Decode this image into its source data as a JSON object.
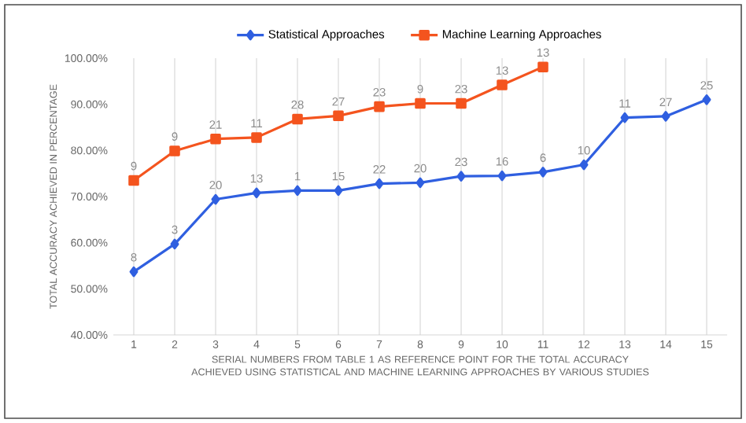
{
  "chart_data": {
    "type": "line",
    "xlabel": "SERIAL NUMBERS FROM TABLE 1 AS REFERENCE POINT FOR THE TOTAL ACCURACY ACHIEVED USING STATISTICAL AND MACHINE LEARNING APPROACHES BY VARIOUS STUDIES",
    "ylabel": "TOTAL ACCURACY ACHIEVED IN PERCENTAGE",
    "x": [
      1,
      2,
      3,
      4,
      5,
      6,
      7,
      8,
      9,
      10,
      11,
      12,
      13,
      14,
      15
    ],
    "xlim": [
      0.5,
      15.5
    ],
    "xticks": [
      1,
      2,
      3,
      4,
      5,
      6,
      7,
      8,
      9,
      10,
      11,
      12,
      13,
      14,
      15
    ],
    "ylim": [
      40,
      100
    ],
    "yticks": [
      {
        "value": 40,
        "label": "40.00%"
      },
      {
        "value": 50,
        "label": "50.00%"
      },
      {
        "value": 60,
        "label": "60.00%"
      },
      {
        "value": 70,
        "label": "70.00%"
      },
      {
        "value": 80,
        "label": "80.00%"
      },
      {
        "value": 90,
        "label": "90.00%"
      },
      {
        "value": 100,
        "label": "100.00%"
      }
    ],
    "grid": "x",
    "legend": "top",
    "series": [
      {
        "name": "Statistical Approaches",
        "color": "#2f5fe0",
        "marker": "diamond",
        "values": [
          53.7,
          59.7,
          69.4,
          70.8,
          71.3,
          71.3,
          72.8,
          73.0,
          74.4,
          74.5,
          75.3,
          76.9,
          87.1,
          87.4,
          91.0
        ]
      },
      {
        "name": "Machine Learning Approaches",
        "color": "#f4541e",
        "marker": "square",
        "values": [
          73.5,
          79.9,
          82.5,
          82.8,
          86.8,
          87.5,
          89.5,
          90.2,
          90.2,
          94.2,
          98.1,
          null,
          null,
          null,
          null
        ]
      }
    ],
    "annotations": [
      {
        "text": "8",
        "x": 1,
        "y": 53.7
      },
      {
        "text": "3",
        "x": 2,
        "y": 59.7
      },
      {
        "text": "20",
        "x": 3,
        "y": 69.4
      },
      {
        "text": "13",
        "x": 4,
        "y": 70.8
      },
      {
        "text": "1",
        "x": 5,
        "y": 71.3
      },
      {
        "text": "15",
        "x": 6,
        "y": 71.3
      },
      {
        "text": "22",
        "x": 7,
        "y": 72.8
      },
      {
        "text": "20",
        "x": 8,
        "y": 73.0
      },
      {
        "text": "23",
        "x": 9,
        "y": 74.4
      },
      {
        "text": "16",
        "x": 10,
        "y": 74.5
      },
      {
        "text": "6",
        "x": 11,
        "y": 75.3
      },
      {
        "text": "10",
        "x": 12,
        "y": 76.9
      },
      {
        "text": "11",
        "x": 13,
        "y": 87.1
      },
      {
        "text": "27",
        "x": 14,
        "y": 87.4
      },
      {
        "text": "25",
        "x": 15,
        "y": 91.0
      },
      {
        "text": "9",
        "x": 1,
        "y": 73.5
      },
      {
        "text": "9",
        "x": 2,
        "y": 79.9
      },
      {
        "text": "21",
        "x": 3,
        "y": 82.5
      },
      {
        "text": "11",
        "x": 4,
        "y": 82.8
      },
      {
        "text": "28",
        "x": 5,
        "y": 86.8
      },
      {
        "text": "27",
        "x": 6,
        "y": 87.5
      },
      {
        "text": "23",
        "x": 7,
        "y": 89.5
      },
      {
        "text": "9",
        "x": 8,
        "y": 90.2
      },
      {
        "text": "23",
        "x": 9,
        "y": 90.2
      },
      {
        "text": "13",
        "x": 10,
        "y": 94.2
      },
      {
        "text": "13",
        "x": 11,
        "y": 98.1
      }
    ]
  }
}
